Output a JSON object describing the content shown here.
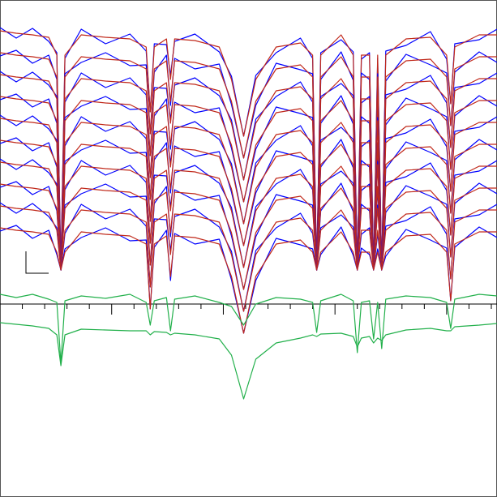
{
  "chart_data": {
    "type": "line",
    "x": [
      0,
      20,
      40,
      60,
      70,
      75,
      80,
      100,
      130,
      160,
      180,
      185,
      190,
      205,
      210,
      215,
      240,
      270,
      285,
      300,
      315,
      340,
      370,
      385,
      390,
      395,
      420,
      435,
      440,
      445,
      455,
      460,
      465,
      470,
      475,
      500,
      530,
      550,
      555,
      560,
      590,
      612
    ],
    "xlim": [
      0,
      612
    ],
    "ylim": [
      0,
      613
    ],
    "xticks": [
      27.5,
      55,
      82.5,
      110,
      165,
      192.5,
      220,
      247.5,
      302.5,
      330,
      357.5,
      385,
      440,
      467.5,
      495,
      522.5,
      577.5,
      605
    ],
    "xticks_major": [
      137.5,
      275,
      412.5,
      550
    ],
    "axis_color": "#000000",
    "series": [
      {
        "color": "#0000ff",
        "values": [
          579,
          566,
          578,
          562,
          548,
          280,
          541,
          577,
          559,
          571,
          550,
          475,
          559,
          558,
          520,
          562,
          571,
          549,
          519,
          445,
          520,
          548,
          566,
          541,
          280,
          548,
          564,
          549,
          280,
          540,
          548,
          280,
          541,
          280,
          550,
          557,
          574,
          540,
          485,
          559,
          564,
          577
        ]
      },
      {
        "color": "#c0281a",
        "values": [
          575,
          572,
          570,
          567,
          545,
          280,
          545,
          570,
          567,
          565,
          555,
          475,
          555,
          565,
          515,
          565,
          563,
          555,
          515,
          445,
          515,
          555,
          560,
          545,
          280,
          545,
          570,
          545,
          280,
          545,
          545,
          280,
          545,
          280,
          545,
          565,
          567,
          545,
          485,
          555,
          570,
          570
        ]
      },
      {
        "color": "#0000ff",
        "values": [
          544,
          551,
          535,
          545,
          515,
          280,
          522,
          536,
          548,
          532,
          533,
          448,
          524,
          545,
          483,
          541,
          528,
          534,
          484,
          418,
          483,
          535,
          527,
          522,
          280,
          515,
          549,
          514,
          280,
          523,
          515,
          280,
          522,
          280,
          513,
          546,
          533,
          523,
          458,
          524,
          549,
          536
        ]
      },
      {
        "color": "#c0281a",
        "values": [
          548,
          545,
          543,
          540,
          518,
          280,
          518,
          543,
          540,
          538,
          528,
          448,
          528,
          538,
          488,
          538,
          536,
          528,
          488,
          418,
          488,
          528,
          533,
          518,
          280,
          518,
          543,
          518,
          280,
          518,
          518,
          280,
          518,
          280,
          518,
          538,
          540,
          518,
          458,
          528,
          543,
          543
        ]
      },
      {
        "color": "#0000ff",
        "values": [
          525,
          512,
          524,
          508,
          494,
          280,
          487,
          523,
          505,
          517,
          496,
          421,
          505,
          504,
          466,
          508,
          517,
          495,
          465,
          391,
          466,
          494,
          512,
          487,
          280,
          494,
          510,
          495,
          280,
          486,
          494,
          280,
          487,
          280,
          496,
          503,
          520,
          486,
          431,
          505,
          510,
          523
        ]
      },
      {
        "color": "#c0281a",
        "values": [
          521,
          518,
          516,
          513,
          491,
          280,
          491,
          516,
          513,
          511,
          501,
          421,
          501,
          511,
          461,
          511,
          509,
          501,
          461,
          391,
          461,
          501,
          506,
          491,
          280,
          491,
          516,
          491,
          280,
          491,
          491,
          280,
          491,
          280,
          491,
          511,
          513,
          491,
          431,
          501,
          516,
          516
        ]
      },
      {
        "color": "#0000ff",
        "values": [
          490,
          497,
          481,
          491,
          461,
          280,
          468,
          482,
          494,
          478,
          479,
          394,
          470,
          491,
          429,
          487,
          474,
          480,
          430,
          364,
          429,
          481,
          473,
          468,
          280,
          461,
          495,
          460,
          280,
          469,
          461,
          280,
          468,
          280,
          459,
          492,
          479,
          469,
          404,
          470,
          495,
          482
        ]
      },
      {
        "color": "#c0281a",
        "values": [
          494,
          491,
          489,
          486,
          464,
          280,
          464,
          489,
          486,
          484,
          474,
          394,
          474,
          484,
          434,
          484,
          482,
          474,
          434,
          364,
          434,
          474,
          479,
          464,
          280,
          464,
          489,
          464,
          280,
          464,
          464,
          280,
          464,
          280,
          464,
          484,
          486,
          464,
          404,
          474,
          489,
          489
        ]
      },
      {
        "color": "#0000ff",
        "values": [
          471,
          458,
          470,
          454,
          440,
          280,
          433,
          469,
          451,
          463,
          442,
          367,
          451,
          450,
          412,
          454,
          463,
          441,
          411,
          337,
          412,
          440,
          458,
          433,
          280,
          440,
          456,
          441,
          280,
          432,
          440,
          280,
          433,
          280,
          442,
          449,
          466,
          432,
          377,
          451,
          456,
          469
        ]
      },
      {
        "color": "#c0281a",
        "values": [
          467,
          464,
          462,
          459,
          437,
          280,
          437,
          462,
          459,
          457,
          447,
          367,
          447,
          457,
          407,
          457,
          455,
          447,
          407,
          337,
          407,
          447,
          452,
          437,
          280,
          437,
          462,
          437,
          280,
          437,
          437,
          280,
          437,
          280,
          437,
          457,
          459,
          437,
          377,
          447,
          462,
          462
        ]
      },
      {
        "color": "#0000ff",
        "values": [
          436,
          443,
          427,
          437,
          407,
          280,
          414,
          428,
          440,
          424,
          425,
          340,
          416,
          437,
          375,
          433,
          420,
          426,
          376,
          310,
          375,
          427,
          419,
          414,
          280,
          407,
          441,
          406,
          280,
          415,
          407,
          280,
          414,
          280,
          405,
          438,
          425,
          415,
          350,
          416,
          441,
          428
        ]
      },
      {
        "color": "#c0281a",
        "values": [
          440,
          437,
          435,
          432,
          410,
          280,
          410,
          435,
          432,
          430,
          420,
          340,
          420,
          430,
          380,
          430,
          428,
          420,
          380,
          310,
          380,
          420,
          425,
          410,
          280,
          410,
          435,
          410,
          280,
          410,
          410,
          280,
          410,
          280,
          410,
          430,
          432,
          410,
          350,
          420,
          435,
          435
        ]
      },
      {
        "color": "#0000ff",
        "values": [
          417,
          404,
          416,
          400,
          386,
          280,
          379,
          415,
          397,
          409,
          388,
          313,
          397,
          396,
          358,
          400,
          409,
          387,
          357,
          283,
          358,
          386,
          404,
          379,
          280,
          386,
          402,
          387,
          280,
          378,
          386,
          280,
          379,
          280,
          388,
          395,
          412,
          378,
          323,
          397,
          402,
          415
        ]
      },
      {
        "color": "#c0281a",
        "values": [
          413,
          410,
          408,
          405,
          383,
          280,
          383,
          408,
          405,
          403,
          393,
          313,
          393,
          403,
          353,
          403,
          401,
          393,
          353,
          283,
          353,
          393,
          398,
          383,
          280,
          383,
          408,
          383,
          280,
          383,
          383,
          280,
          383,
          280,
          383,
          403,
          405,
          383,
          323,
          393,
          408,
          408
        ]
      },
      {
        "color": "#0000ff",
        "values": [
          382,
          389,
          373,
          383,
          353,
          280,
          360,
          374,
          386,
          370,
          371,
          286,
          362,
          383,
          321,
          379,
          366,
          372,
          322,
          256,
          321,
          373,
          365,
          360,
          280,
          353,
          387,
          352,
          280,
          361,
          353,
          280,
          360,
          280,
          351,
          384,
          371,
          361,
          296,
          362,
          387,
          374
        ]
      },
      {
        "color": "#c0281a",
        "values": [
          386,
          383,
          381,
          378,
          356,
          280,
          356,
          381,
          378,
          376,
          366,
          286,
          366,
          376,
          326,
          376,
          374,
          366,
          326,
          256,
          326,
          366,
          371,
          356,
          280,
          356,
          381,
          356,
          280,
          356,
          356,
          280,
          356,
          280,
          356,
          376,
          378,
          356,
          296,
          366,
          381,
          381
        ]
      },
      {
        "color": "#0000ff",
        "values": [
          363,
          350,
          362,
          346,
          332,
          280,
          325,
          361,
          343,
          355,
          334,
          259,
          343,
          342,
          304,
          346,
          355,
          333,
          303,
          229,
          304,
          332,
          350,
          325,
          280,
          332,
          348,
          333,
          280,
          324,
          332,
          280,
          325,
          280,
          334,
          341,
          358,
          324,
          269,
          343,
          348,
          361
        ]
      },
      {
        "color": "#c0281a",
        "values": [
          359,
          356,
          354,
          351,
          329,
          280,
          329,
          354,
          351,
          349,
          339,
          259,
          339,
          349,
          299,
          349,
          347,
          339,
          299,
          229,
          299,
          339,
          344,
          329,
          280,
          329,
          354,
          329,
          280,
          329,
          329,
          280,
          329,
          280,
          329,
          349,
          351,
          329,
          269,
          339,
          354,
          354
        ]
      },
      {
        "color": "#0000ff",
        "values": [
          328,
          335,
          319,
          329,
          299,
          280,
          306,
          320,
          332,
          316,
          317,
          232,
          308,
          329,
          267,
          325,
          312,
          318,
          268,
          202,
          267,
          319,
          311,
          306,
          280,
          299,
          333,
          298,
          280,
          307,
          299,
          280,
          306,
          280,
          297,
          330,
          317,
          307,
          242,
          308,
          333,
          320
        ]
      },
      {
        "color": "#c0281a",
        "values": [
          332,
          329,
          327,
          324,
          302,
          280,
          302,
          327,
          324,
          322,
          312,
          232,
          312,
          322,
          272,
          322,
          320,
          312,
          272,
          202,
          272,
          312,
          317,
          302,
          280,
          302,
          327,
          302,
          280,
          302,
          302,
          280,
          302,
          280,
          302,
          322,
          324,
          302,
          242,
          312,
          327,
          327
        ]
      },
      {
        "color": "#22b04b",
        "values": [
          250,
          246,
          250,
          244,
          240,
          165,
          242,
          248,
          245,
          250,
          240,
          212,
          242,
          246,
          205,
          244,
          248,
          240,
          235,
          212,
          238,
          246,
          244,
          240,
          203,
          242,
          250,
          242,
          178,
          240,
          242,
          195,
          240,
          183,
          244,
          248,
          246,
          240,
          208,
          244,
          250,
          248
        ]
      },
      {
        "color": "#22b04b",
        "values": [
          215,
          213,
          211,
          208,
          200,
          162,
          200,
          207,
          206,
          205,
          205,
          200,
          204,
          203,
          200,
          202,
          200,
          195,
          175,
          121,
          170,
          190,
          196,
          200,
          198,
          201,
          202,
          198,
          185,
          196,
          198,
          190,
          196,
          193,
          200,
          206,
          208,
          205,
          205,
          210,
          212,
          214
        ]
      }
    ]
  }
}
